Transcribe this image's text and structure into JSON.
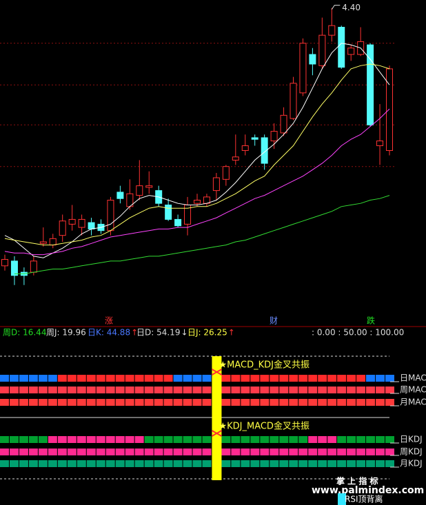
{
  "chart_data": {
    "type": "candlestick",
    "ylim": [
      2.6,
      4.45
    ],
    "grid_levels": [
      4.18,
      3.92,
      3.67,
      3.41
    ],
    "candles": {
      "open": [
        2.79,
        2.82,
        2.75,
        2.75,
        2.93,
        2.92,
        2.98,
        3.05,
        3.03,
        3.06,
        3.05,
        3.01,
        3.25,
        3.16,
        3.23,
        3.28,
        3.26,
        3.17,
        3.08,
        3.05,
        3.18,
        3.18,
        3.26,
        3.33,
        3.45,
        3.51,
        3.59,
        3.59,
        3.57,
        3.62,
        3.71,
        3.87,
        4.11,
        4.04,
        4.23,
        4.28,
        4.11,
        4.11,
        4.17,
        3.54,
        3.51
      ],
      "high": [
        2.86,
        2.85,
        2.78,
        2.85,
        3.03,
        2.99,
        3.11,
        3.17,
        3.11,
        3.09,
        3.08,
        3.22,
        3.29,
        3.33,
        3.45,
        3.38,
        3.29,
        3.21,
        3.11,
        3.22,
        3.24,
        3.24,
        3.37,
        3.42,
        3.61,
        3.61,
        3.61,
        3.61,
        3.68,
        3.78,
        3.97,
        4.21,
        4.15,
        4.34,
        4.4,
        4.29,
        4.17,
        4.28,
        4.18,
        3.8,
        4.04
      ],
      "low": [
        2.76,
        2.67,
        2.67,
        2.73,
        2.91,
        2.9,
        2.94,
        3.01,
        2.98,
        2.98,
        2.99,
        2.98,
        3.18,
        3.14,
        3.2,
        3.24,
        3.16,
        3.07,
        3.03,
        2.98,
        3.16,
        3.16,
        3.2,
        3.29,
        3.42,
        3.48,
        3.54,
        3.39,
        3.52,
        3.6,
        3.7,
        3.85,
        3.98,
        4.02,
        4.19,
        4.02,
        4.07,
        4.1,
        3.66,
        3.42,
        3.48
      ],
      "close": [
        2.83,
        2.73,
        2.73,
        2.82,
        2.94,
        2.96,
        3.07,
        3.08,
        3.08,
        3.02,
        3.01,
        3.2,
        3.21,
        3.24,
        3.29,
        3.29,
        3.18,
        3.08,
        3.04,
        3.17,
        3.2,
        3.22,
        3.34,
        3.41,
        3.47,
        3.54,
        3.58,
        3.43,
        3.63,
        3.73,
        3.93,
        4.18,
        4.05,
        4.23,
        4.29,
        4.03,
        4.15,
        4.19,
        3.67,
        3.57,
        4.02
      ]
    },
    "up_color": "#ff3232",
    "down_color": "#54fcfc",
    "series": [
      {
        "color": "#ffffff",
        "values": [
          2.98,
          2.95,
          2.9,
          2.85,
          2.84,
          2.87,
          2.9,
          2.94,
          2.99,
          3.02,
          3.03,
          3.05,
          3.1,
          3.16,
          3.21,
          3.23,
          3.22,
          3.2,
          3.18,
          3.17,
          3.17,
          3.18,
          3.2,
          3.25,
          3.31,
          3.38,
          3.45,
          3.5,
          3.55,
          3.61,
          3.68,
          3.78,
          3.9,
          4.02,
          4.12,
          4.18,
          4.17,
          4.15,
          4.08,
          4.0,
          3.92
        ]
      },
      {
        "color": "#ffff66",
        "values": [
          2.96,
          2.95,
          2.94,
          2.93,
          2.92,
          2.92,
          2.93,
          2.94,
          2.95,
          2.97,
          2.98,
          3.01,
          3.05,
          3.09,
          3.12,
          3.15,
          3.16,
          3.15,
          3.15,
          3.15,
          3.16,
          3.16,
          3.18,
          3.21,
          3.24,
          3.28,
          3.32,
          3.35,
          3.42,
          3.48,
          3.54,
          3.63,
          3.72,
          3.8,
          3.87,
          3.95,
          4.02,
          4.04,
          4.05,
          4.04,
          4.02
        ]
      },
      {
        "color": "#ff44ff",
        "values": [
          2.88,
          2.87,
          2.87,
          2.86,
          2.86,
          2.87,
          2.88,
          2.9,
          2.91,
          2.93,
          2.95,
          2.97,
          2.98,
          2.99,
          3.0,
          3.01,
          3.02,
          3.02,
          3.03,
          3.03,
          3.05,
          3.07,
          3.09,
          3.12,
          3.15,
          3.18,
          3.21,
          3.23,
          3.26,
          3.29,
          3.32,
          3.35,
          3.39,
          3.43,
          3.48,
          3.54,
          3.58,
          3.61,
          3.66,
          3.71,
          3.77
        ]
      },
      {
        "color": "#33dd33",
        "values": [
          null,
          2.74,
          2.74,
          2.75,
          2.76,
          2.77,
          2.77,
          2.78,
          2.79,
          2.8,
          2.81,
          2.82,
          2.82,
          2.83,
          2.84,
          2.85,
          2.85,
          2.86,
          2.87,
          2.88,
          2.89,
          2.9,
          2.91,
          2.92,
          2.94,
          2.95,
          2.97,
          2.99,
          3.01,
          3.03,
          3.05,
          3.07,
          3.09,
          3.11,
          3.13,
          3.16,
          3.17,
          3.18,
          3.2,
          3.21,
          3.23
        ]
      }
    ],
    "max_label": {
      "value": 4.4,
      "label": "4.40"
    },
    "events": [
      {
        "text": "涨",
        "color": "#ff3232"
      },
      {
        "text": "财",
        "color": "#6a8cff"
      },
      {
        "text": "跌",
        "color": "#22dd22"
      }
    ]
  },
  "indicators": [
    {
      "text": "周D: 16.44",
      "color": "#22dd22"
    },
    {
      "text": "周J: 19.96",
      "color": "#dddddd"
    },
    {
      "text": "日K: 44.88",
      "color": "#4a78ff",
      "arrow": "↑",
      "arrow_color": "#ff3232"
    },
    {
      "text": "日D: 54.19",
      "color": "#dddddd",
      "arrow": "↓",
      "arrow_color": "#dddddd"
    },
    {
      "text": "日J: 26.25",
      "color": "#ffff44",
      "arrow": "↑",
      "arrow_color": "#ff3232"
    },
    {
      "text": ": 0.00 : 50.00 : 100.00",
      "color": "#dddddd"
    }
  ],
  "signal_panel": {
    "signal_column": 22,
    "signals": [
      "★MACD_KDJ金叉共振",
      "★KDJ_MACD金叉共振"
    ],
    "rows": [
      {
        "label": "日MAC",
        "segments": [
          {
            "color": "#1478ff",
            "count": 6
          },
          {
            "color": "#ff2a2a",
            "count": 12
          },
          {
            "color": "#1478ff",
            "count": 4
          },
          {
            "color": "#ff2a2a",
            "count": 16
          },
          {
            "color": "#1478ff",
            "count": 3
          }
        ]
      },
      {
        "label": "周MAC",
        "segments": [
          {
            "color": "#ff3a4a",
            "count": 41
          }
        ]
      },
      {
        "label": "月MAC",
        "segments": [
          {
            "color": "#ff3a3a",
            "count": 41
          }
        ]
      },
      {
        "label": "日KDJ",
        "segments": [
          {
            "color": "#00a030",
            "count": 5
          },
          {
            "color": "#ff2a90",
            "count": 10
          },
          {
            "color": "#00a030",
            "count": 17
          },
          {
            "color": "#ff2a90",
            "count": 3
          },
          {
            "color": "#00a030",
            "count": 6
          }
        ]
      },
      {
        "label": "周KDJ",
        "segments": [
          {
            "color": "#ff2a90",
            "count": 41
          }
        ]
      },
      {
        "label": "月KDJ",
        "segments": [
          {
            "color": "#00a070",
            "count": 41
          }
        ]
      }
    ]
  },
  "watermark": {
    "title": "掌 上 指 标",
    "url": "www.palmindex.com",
    "tag": "RSI顶背离"
  }
}
